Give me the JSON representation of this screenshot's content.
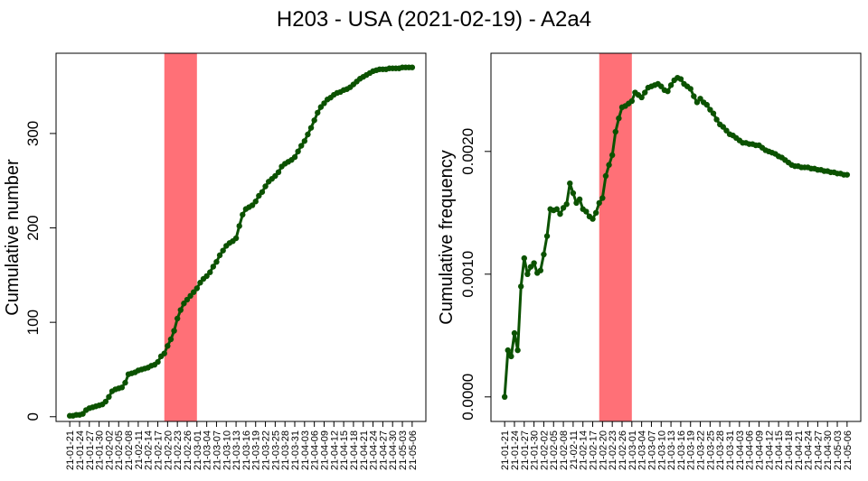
{
  "title": "H203 - USA (2021-02-19) - A2a4",
  "colors": {
    "line": "#0b5200",
    "highlight": "#ff7077"
  },
  "dates": [
    "21-01-21",
    "21-01-22",
    "21-01-23",
    "21-01-24",
    "21-01-25",
    "21-01-26",
    "21-01-27",
    "21-01-28",
    "21-01-29",
    "21-01-30",
    "21-01-31",
    "21-02-01",
    "21-02-02",
    "21-02-03",
    "21-02-04",
    "21-02-05",
    "21-02-06",
    "21-02-07",
    "21-02-08",
    "21-02-09",
    "21-02-10",
    "21-02-11",
    "21-02-12",
    "21-02-13",
    "21-02-14",
    "21-02-15",
    "21-02-16",
    "21-02-17",
    "21-02-18",
    "21-02-19",
    "21-02-20",
    "21-02-21",
    "21-02-22",
    "21-02-23",
    "21-02-24",
    "21-02-25",
    "21-02-26",
    "21-02-27",
    "21-02-28",
    "21-03-01",
    "21-03-02",
    "21-03-03",
    "21-03-04",
    "21-03-05",
    "21-03-06",
    "21-03-07",
    "21-03-08",
    "21-03-09",
    "21-03-10",
    "21-03-11",
    "21-03-12",
    "21-03-13",
    "21-03-14",
    "21-03-15",
    "21-03-16",
    "21-03-17",
    "21-03-18",
    "21-03-19",
    "21-03-20",
    "21-03-21",
    "21-03-22",
    "21-03-23",
    "21-03-24",
    "21-03-25",
    "21-03-26",
    "21-03-27",
    "21-03-28",
    "21-03-29",
    "21-03-30",
    "21-03-31",
    "21-04-01",
    "21-04-02",
    "21-04-03",
    "21-04-04",
    "21-04-05",
    "21-04-06",
    "21-04-07",
    "21-04-08",
    "21-04-09",
    "21-04-10",
    "21-04-11",
    "21-04-12",
    "21-04-13",
    "21-04-14",
    "21-04-15",
    "21-04-16",
    "21-04-17",
    "21-04-18",
    "21-04-19",
    "21-04-20",
    "21-04-21",
    "21-04-22",
    "21-04-23",
    "21-04-24",
    "21-04-25",
    "21-04-26",
    "21-04-27",
    "21-04-28",
    "21-04-29",
    "21-04-30",
    "21-05-01",
    "21-05-02",
    "21-05-03",
    "21-05-04",
    "21-05-05",
    "21-05-06"
  ],
  "tick_labels": [
    "21-01-21",
    "21-01-24",
    "21-01-27",
    "21-01-30",
    "21-02-02",
    "21-02-05",
    "21-02-08",
    "21-02-11",
    "21-02-14",
    "21-02-17",
    "21-02-20",
    "21-02-23",
    "21-02-26",
    "21-03-01",
    "21-03-04",
    "21-03-07",
    "21-03-10",
    "21-03-13",
    "21-03-16",
    "21-03-19",
    "21-03-22",
    "21-03-25",
    "21-03-28",
    "21-03-31",
    "21-04-03",
    "21-04-06",
    "21-04-09",
    "21-04-12",
    "21-04-15",
    "21-04-18",
    "21-04-21",
    "21-04-24",
    "21-04-27",
    "21-04-30",
    "21-05-03",
    "21-05-06"
  ],
  "chart_data": [
    {
      "type": "line",
      "ylabel": "Cumulative number",
      "xlabel": "",
      "ylim": [
        -5,
        385
      ],
      "yticks": [
        0,
        100,
        200,
        300
      ],
      "highlight_range": [
        "21-02-19",
        "21-03-01"
      ],
      "y": [
        1,
        1,
        2,
        2,
        3,
        7,
        9,
        10,
        11,
        12,
        13,
        16,
        21,
        27,
        29,
        30,
        31,
        36,
        45,
        46,
        47,
        49,
        50,
        51,
        52,
        54,
        55,
        58,
        64,
        67,
        75,
        82,
        91,
        104,
        113,
        120,
        124,
        128,
        132,
        136,
        142,
        146,
        149,
        153,
        159,
        164,
        171,
        176,
        181,
        184,
        186,
        189,
        202,
        214,
        220,
        222,
        224,
        228,
        234,
        238,
        244,
        249,
        252,
        255,
        259,
        265,
        268,
        270,
        272,
        275,
        281,
        287,
        292,
        299,
        306,
        314,
        322,
        328,
        332,
        336,
        338,
        341,
        343,
        344,
        346,
        347,
        349,
        352,
        355,
        358,
        360,
        362,
        364,
        366,
        367,
        368,
        368,
        368,
        369,
        369,
        369,
        369,
        370,
        370,
        370,
        370
      ],
      "points": 106
    },
    {
      "type": "line",
      "ylabel": "Cumulative frequency",
      "xlabel": "",
      "ylim": [
        -0.0002,
        0.0028
      ],
      "yticks": [
        0.0,
        0.001,
        0.002
      ],
      "ytick_labels": [
        "0.0000",
        "0.0010",
        "0.0020"
      ],
      "highlight_range": [
        "21-02-19",
        "21-03-01"
      ],
      "y": [
        0.0,
        0.00038,
        0.00033,
        0.00052,
        0.00038,
        0.0009,
        0.00113,
        0.001,
        0.00106,
        0.00109,
        0.00101,
        0.00103,
        0.00116,
        0.00131,
        0.00153,
        0.00152,
        0.00153,
        0.00149,
        0.00154,
        0.00157,
        0.00174,
        0.00166,
        0.00158,
        0.00161,
        0.00153,
        0.00151,
        0.00147,
        0.00145,
        0.0015,
        0.00158,
        0.00162,
        0.0018,
        0.00189,
        0.00197,
        0.00216,
        0.00227,
        0.00236,
        0.00237,
        0.00239,
        0.00241,
        0.00248,
        0.00246,
        0.00244,
        0.00248,
        0.00252,
        0.00253,
        0.00254,
        0.00255,
        0.00253,
        0.0025,
        0.00249,
        0.00254,
        0.00258,
        0.0026,
        0.00259,
        0.00255,
        0.00253,
        0.00251,
        0.00245,
        0.0024,
        0.00243,
        0.0024,
        0.00238,
        0.00234,
        0.00231,
        0.00226,
        0.00222,
        0.0022,
        0.00217,
        0.00214,
        0.00213,
        0.00211,
        0.00209,
        0.00207,
        0.00207,
        0.00206,
        0.00206,
        0.00205,
        0.00205,
        0.00203,
        0.00201,
        0.002,
        0.00199,
        0.00198,
        0.00196,
        0.00195,
        0.00193,
        0.00191,
        0.00189,
        0.00188,
        0.00188,
        0.00187,
        0.00187,
        0.00187,
        0.00186,
        0.00186,
        0.00185,
        0.00185,
        0.00184,
        0.00184,
        0.00183,
        0.00183,
        0.00182,
        0.00182,
        0.00181,
        0.00181
      ],
      "points": 106
    }
  ]
}
